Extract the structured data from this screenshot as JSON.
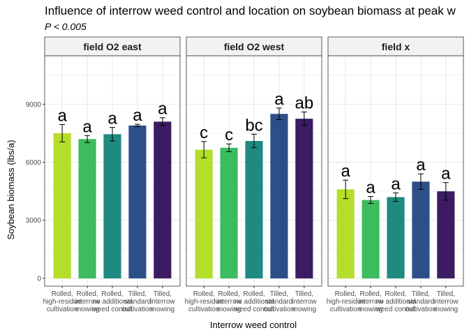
{
  "chart_data": {
    "type": "bar",
    "title": "Influence of interrow weed control and location on soybean biomass at peak w",
    "subtitle": "P < 0.005",
    "xlabel": "Interrow weed control",
    "ylabel": "Soybean biomass (lbs/a)",
    "ylim": [
      -400,
      11500
    ],
    "yticks": [
      0,
      3000,
      6000,
      9000
    ],
    "grid": true,
    "legend": "none",
    "categories": [
      [
        "Rolled,",
        "high-residue",
        "cultivation"
      ],
      [
        "Rolled,",
        "interrow",
        "mowing"
      ],
      [
        "Rolled,",
        "no additional",
        "weed control"
      ],
      [
        "Tilled,",
        "standard",
        "cultivation"
      ],
      [
        "Tilled,",
        "interrow",
        "mowing"
      ]
    ],
    "colors": [
      "#b5de2b",
      "#3cbb5f",
      "#1f8a80",
      "#2c4f87",
      "#3b1b61"
    ],
    "panels": [
      {
        "label": "field O2 east",
        "values": [
          7500,
          7200,
          7450,
          7900,
          8100
        ],
        "errors": [
          450,
          180,
          350,
          60,
          200
        ],
        "letters": [
          "a",
          "a",
          "a",
          "a",
          "a"
        ]
      },
      {
        "label": "field O2 west",
        "values": [
          6650,
          6750,
          7100,
          8500,
          8250
        ],
        "errors": [
          420,
          200,
          350,
          300,
          350
        ],
        "letters": [
          "c",
          "c",
          "bc",
          "a",
          "ab"
        ]
      },
      {
        "label": "field x",
        "values": [
          4600,
          4050,
          4200,
          5000,
          4500
        ],
        "errors": [
          480,
          180,
          220,
          400,
          450
        ],
        "letters": [
          "a",
          "a",
          "a",
          "a",
          "a"
        ]
      }
    ]
  }
}
